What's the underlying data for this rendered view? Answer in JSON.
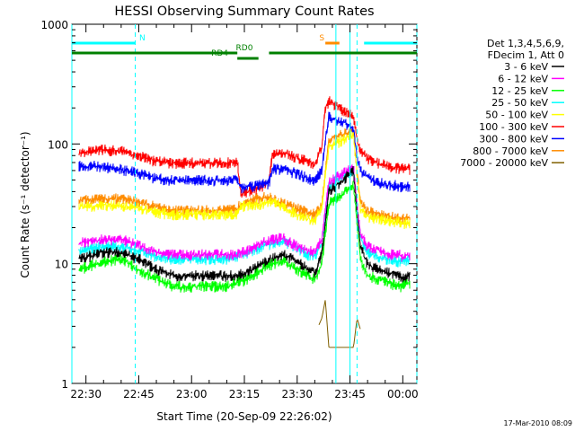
{
  "chart_data": {
    "type": "line",
    "title": "HESSI Observing Summary Count Rates",
    "xlabel": "Start Time (20-Sep-09 22:26:02)",
    "ylabel": "Count Rate (s⁻¹ detector⁻¹)",
    "yscale": "log",
    "ylim": [
      1,
      1000
    ],
    "xlim": [
      "22:26",
      "00:04"
    ],
    "x_ticks": [
      "22:30",
      "22:45",
      "23:00",
      "23:15",
      "23:30",
      "23:45",
      "00:00"
    ],
    "y_ticks": [
      "1",
      "10",
      "100",
      "1000"
    ],
    "footer": "17-Mar-2010 08:09",
    "legend_header": [
      "Det 1,3,4,5,6,9,",
      "FDecim 1, Att 0"
    ],
    "legend_position": "right",
    "series": [
      {
        "name": "3 - 6 keV",
        "color": "#000000",
        "x": [
          "22:28",
          "22:35",
          "22:40",
          "22:45",
          "22:50",
          "22:55",
          "23:00",
          "23:05",
          "23:10",
          "23:13",
          "23:16",
          "23:20",
          "23:23",
          "23:26",
          "23:30",
          "23:33",
          "23:35",
          "23:37",
          "23:38",
          "23:39",
          "23:46",
          "23:47",
          "23:48",
          "23:50",
          "23:53",
          "23:56",
          "23:59",
          "00:00",
          "00:02"
        ],
        "y": [
          11,
          12.5,
          12.5,
          11,
          9,
          8,
          8,
          8,
          8,
          8,
          8.5,
          10,
          11,
          12,
          10.5,
          9,
          8.5,
          12,
          22,
          40,
          60,
          28,
          14,
          10,
          9,
          8.5,
          8,
          7.5,
          8
        ]
      },
      {
        "name": "6 - 12 keV",
        "color": "#ff00ff",
        "x": [
          "22:28",
          "22:35",
          "22:40",
          "22:45",
          "22:50",
          "22:55",
          "23:00",
          "23:05",
          "23:10",
          "23:13",
          "23:16",
          "23:20",
          "23:23",
          "23:26",
          "23:30",
          "23:33",
          "23:35",
          "23:37",
          "23:38",
          "23:39",
          "23:46",
          "23:47",
          "23:48",
          "23:50",
          "23:53",
          "23:56",
          "23:59",
          "00:00",
          "00:02"
        ],
        "y": [
          15,
          16,
          16,
          14.5,
          12.5,
          12,
          12,
          12,
          12,
          12,
          13,
          15,
          16,
          16.5,
          14,
          13,
          12.5,
          16,
          28,
          48,
          65,
          32,
          18,
          14,
          13,
          12,
          12,
          11.5,
          12
        ]
      },
      {
        "name": "12 - 25 keV",
        "color": "#00ff00",
        "x": [
          "22:28",
          "22:35",
          "22:40",
          "22:45",
          "22:50",
          "22:55",
          "23:00",
          "23:05",
          "23:10",
          "23:13",
          "23:16",
          "23:20",
          "23:23",
          "23:26",
          "23:30",
          "23:33",
          "23:35",
          "23:37",
          "23:38",
          "23:39",
          "23:46",
          "23:47",
          "23:48",
          "23:50",
          "23:53",
          "23:56",
          "23:59",
          "00:00",
          "00:02"
        ],
        "y": [
          9,
          10.5,
          11,
          9,
          7.5,
          6.5,
          6.5,
          6.5,
          6.5,
          7,
          7.5,
          9,
          10,
          10.5,
          9,
          8,
          7.5,
          10,
          18,
          32,
          45,
          22,
          11,
          8,
          7.5,
          7,
          6.5,
          6.5,
          7
        ]
      },
      {
        "name": "25 - 50 keV",
        "color": "#00ffff",
        "x": [
          "22:28",
          "22:35",
          "22:40",
          "22:45",
          "22:50",
          "22:55",
          "23:00",
          "23:05",
          "23:10",
          "23:13",
          "23:16",
          "23:20",
          "23:23",
          "23:26",
          "23:30",
          "23:33",
          "23:35",
          "23:37",
          "23:38",
          "23:39",
          "23:46",
          "23:47",
          "23:48",
          "23:50",
          "23:53",
          "23:56",
          "23:59",
          "00:00",
          "00:02"
        ],
        "y": [
          13,
          14,
          14,
          13,
          11.5,
          11,
          11,
          11,
          11,
          11.5,
          12.5,
          14,
          15,
          15.5,
          13.5,
          12,
          11.5,
          15,
          26,
          45,
          62,
          30,
          16,
          12.5,
          11.5,
          11,
          10.5,
          10.5,
          11
        ]
      },
      {
        "name": "50 - 100 keV",
        "color": "#ffff00",
        "x": [
          "22:28",
          "22:35",
          "22:40",
          "22:45",
          "22:50",
          "22:55",
          "23:00",
          "23:05",
          "23:10",
          "23:13",
          "23:14",
          "23:16",
          "23:20",
          "23:23",
          "23:26",
          "23:30",
          "23:33",
          "23:35",
          "23:37",
          "23:38",
          "23:39",
          "23:46",
          "23:47",
          "23:48",
          "23:50",
          "23:53",
          "23:56",
          "23:59",
          "00:00",
          "00:02"
        ],
        "y": [
          30,
          31,
          31,
          29,
          27,
          26,
          26,
          26,
          26,
          26,
          30,
          31,
          32,
          33,
          30,
          26,
          24,
          23,
          30,
          55,
          95,
          120,
          55,
          28,
          25,
          24,
          23,
          22.5,
          22,
          22
        ]
      },
      {
        "name": "100 - 300 keV",
        "color": "#ff0000",
        "x": [
          "22:28",
          "22:32",
          "22:35",
          "22:40",
          "22:45",
          "22:50",
          "22:55",
          "23:00",
          "23:05",
          "23:10",
          "23:13",
          "23:14",
          "23:16",
          "23:20",
          "23:22",
          "23:23",
          "23:26",
          "23:30",
          "23:33",
          "23:35",
          "23:37",
          "23:38",
          "23:39",
          "23:46",
          "23:47",
          "23:48",
          "23:50",
          "23:53",
          "23:56",
          "23:59",
          "00:00",
          "00:02"
        ],
        "y": [
          85,
          88,
          90,
          88,
          80,
          72,
          70,
          70,
          70,
          70,
          72,
          38,
          40,
          45,
          48,
          85,
          85,
          78,
          72,
          68,
          95,
          200,
          230,
          170,
          110,
          90,
          75,
          70,
          65,
          63,
          63,
          62
        ]
      },
      {
        "name": "300 - 800 keV",
        "color": "#0000ff",
        "x": [
          "22:28",
          "22:32",
          "22:35",
          "22:40",
          "22:45",
          "22:50",
          "22:55",
          "23:00",
          "23:05",
          "23:10",
          "23:13",
          "23:14",
          "23:16",
          "23:20",
          "23:22",
          "23:23",
          "23:26",
          "23:30",
          "23:33",
          "23:35",
          "23:37",
          "23:38",
          "23:39",
          "23:46",
          "23:47",
          "23:48",
          "23:50",
          "23:53",
          "23:56",
          "23:59",
          "00:00",
          "00:02"
        ],
        "y": [
          66,
          66,
          65,
          62,
          57,
          52,
          50,
          50,
          50,
          50,
          52,
          43,
          44,
          46,
          47,
          63,
          62,
          57,
          52,
          50,
          60,
          110,
          170,
          140,
          80,
          60,
          52,
          48,
          46,
          45,
          44,
          44
        ]
      },
      {
        "name": "800 - 7000 keV",
        "color": "#ff8c00",
        "x": [
          "22:28",
          "22:35",
          "22:40",
          "22:45",
          "22:50",
          "22:55",
          "23:00",
          "23:05",
          "23:10",
          "23:13",
          "23:14",
          "23:16",
          "23:20",
          "23:22",
          "23:23",
          "23:26",
          "23:30",
          "23:33",
          "23:35",
          "23:37",
          "23:38",
          "23:39",
          "23:46",
          "23:47",
          "23:48",
          "23:50",
          "23:53",
          "23:56",
          "23:59",
          "00:00",
          "00:02"
        ],
        "y": [
          34,
          35,
          35,
          33,
          30,
          28,
          28,
          28,
          28,
          29,
          32,
          34,
          36,
          36,
          35,
          32,
          29,
          27,
          26,
          30,
          60,
          110,
          130,
          60,
          32,
          28,
          26,
          25,
          24,
          24,
          24
        ]
      },
      {
        "name": "7000 - 20000 keV",
        "color": "#806000",
        "x": [
          "23:36",
          "23:37",
          "23:38",
          "23:39",
          "23:46",
          "23:47",
          "23:48"
        ],
        "y": [
          3,
          3.5,
          5,
          2,
          2,
          3.5,
          2.8
        ]
      }
    ],
    "annotations": [
      {
        "label": "N",
        "color": "#00ffff",
        "x_start": "22:26",
        "x_end": "22:44",
        "x_label": "22:46",
        "level": "upper"
      },
      {
        "label": "",
        "color": "#00ffff",
        "x_start": "23:49",
        "x_end": "00:04",
        "level": "upper"
      },
      {
        "label": "S",
        "color": "#ff8c00",
        "x_start": "23:38",
        "x_end": "23:42",
        "x_label": "23:37",
        "level": "upper"
      },
      {
        "label": "RD0",
        "color": "#008000",
        "x_start": "22:26",
        "x_end": "00:04",
        "x_label": "23:15",
        "level": "middle",
        "gap": [
          "23:13",
          "23:22"
        ]
      },
      {
        "label": "RD4",
        "color": "#008000",
        "x_start": "23:13",
        "x_end": "23:19",
        "x_label": "23:08",
        "level": "lower"
      }
    ],
    "vertical_markers": {
      "color": "#00ffff",
      "dashed": [
        "22:44",
        "23:47",
        "00:04"
      ],
      "solid": [
        "22:26",
        "23:41",
        "23:45"
      ]
    },
    "grid": false
  }
}
